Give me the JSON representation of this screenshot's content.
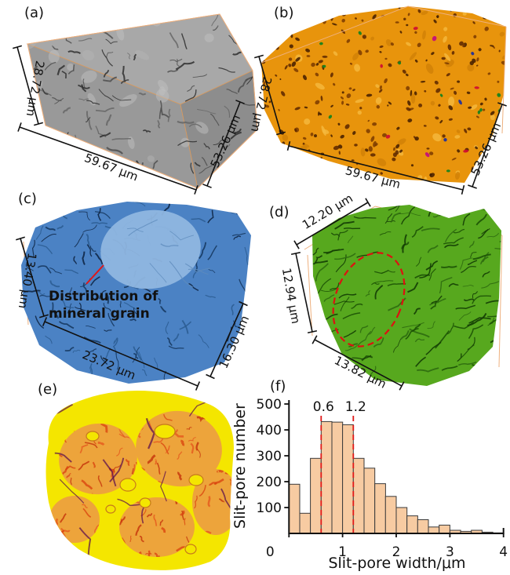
{
  "panels": {
    "a": {
      "label": "(a)",
      "dim_left": "28.72 μm",
      "dim_bottom": "59.67 μm",
      "dim_right": "53.26 μm"
    },
    "b": {
      "label": "(b)",
      "dim_left": "28.72 μm",
      "dim_bottom": "59.67 μm",
      "dim_right": "53.26 μm"
    },
    "c": {
      "label": "(c)",
      "dim_left": "13.40 μm",
      "dim_bottom": "23.72 μm",
      "dim_right": "16.30 μm",
      "annotation_line1": "Distribution of",
      "annotation_line2": "mineral grain"
    },
    "d": {
      "label": "(d)",
      "dim_top": "12.20 μm",
      "dim_left": "12.94 μm",
      "dim_bottom": "13.82 μm"
    },
    "e": {
      "label": "(e)"
    },
    "f": {
      "label": "(f)"
    }
  },
  "chart_data": {
    "type": "bar",
    "title": "",
    "xlabel": "Slit-pore width/μm",
    "ylabel": "Slit-pore number",
    "xlim": [
      0,
      4
    ],
    "ylim": [
      0,
      500
    ],
    "xticks": [
      0,
      1,
      2,
      3,
      4
    ],
    "yticks": [
      100,
      200,
      300,
      400,
      500
    ],
    "bin_start": 0,
    "bin_width": 0.2,
    "values": [
      190,
      78,
      290,
      432,
      430,
      420,
      290,
      252,
      192,
      143,
      100,
      68,
      53,
      25,
      32,
      12,
      8,
      12,
      5,
      2
    ],
    "reference_lines": [
      {
        "x": 0.6,
        "label": "0.6"
      },
      {
        "x": 1.2,
        "label": "1.2"
      }
    ],
    "grid": false,
    "legend": null,
    "bar_fill": "#f7cba2",
    "bar_stroke": "#3a3a3a",
    "ref_color": "#e01818"
  },
  "colors": {
    "panel_a_gray": "#9b9b9b",
    "panel_b_orange": "#e8940c",
    "panel_c_blue": "#4b82c4",
    "panel_c_grain": "#8fb6e0",
    "panel_d_green": "#57a81e",
    "panel_e_yellow": "#f4e600",
    "annotation_red": "#e01818",
    "wireframe_orange": "#eeb07e"
  }
}
